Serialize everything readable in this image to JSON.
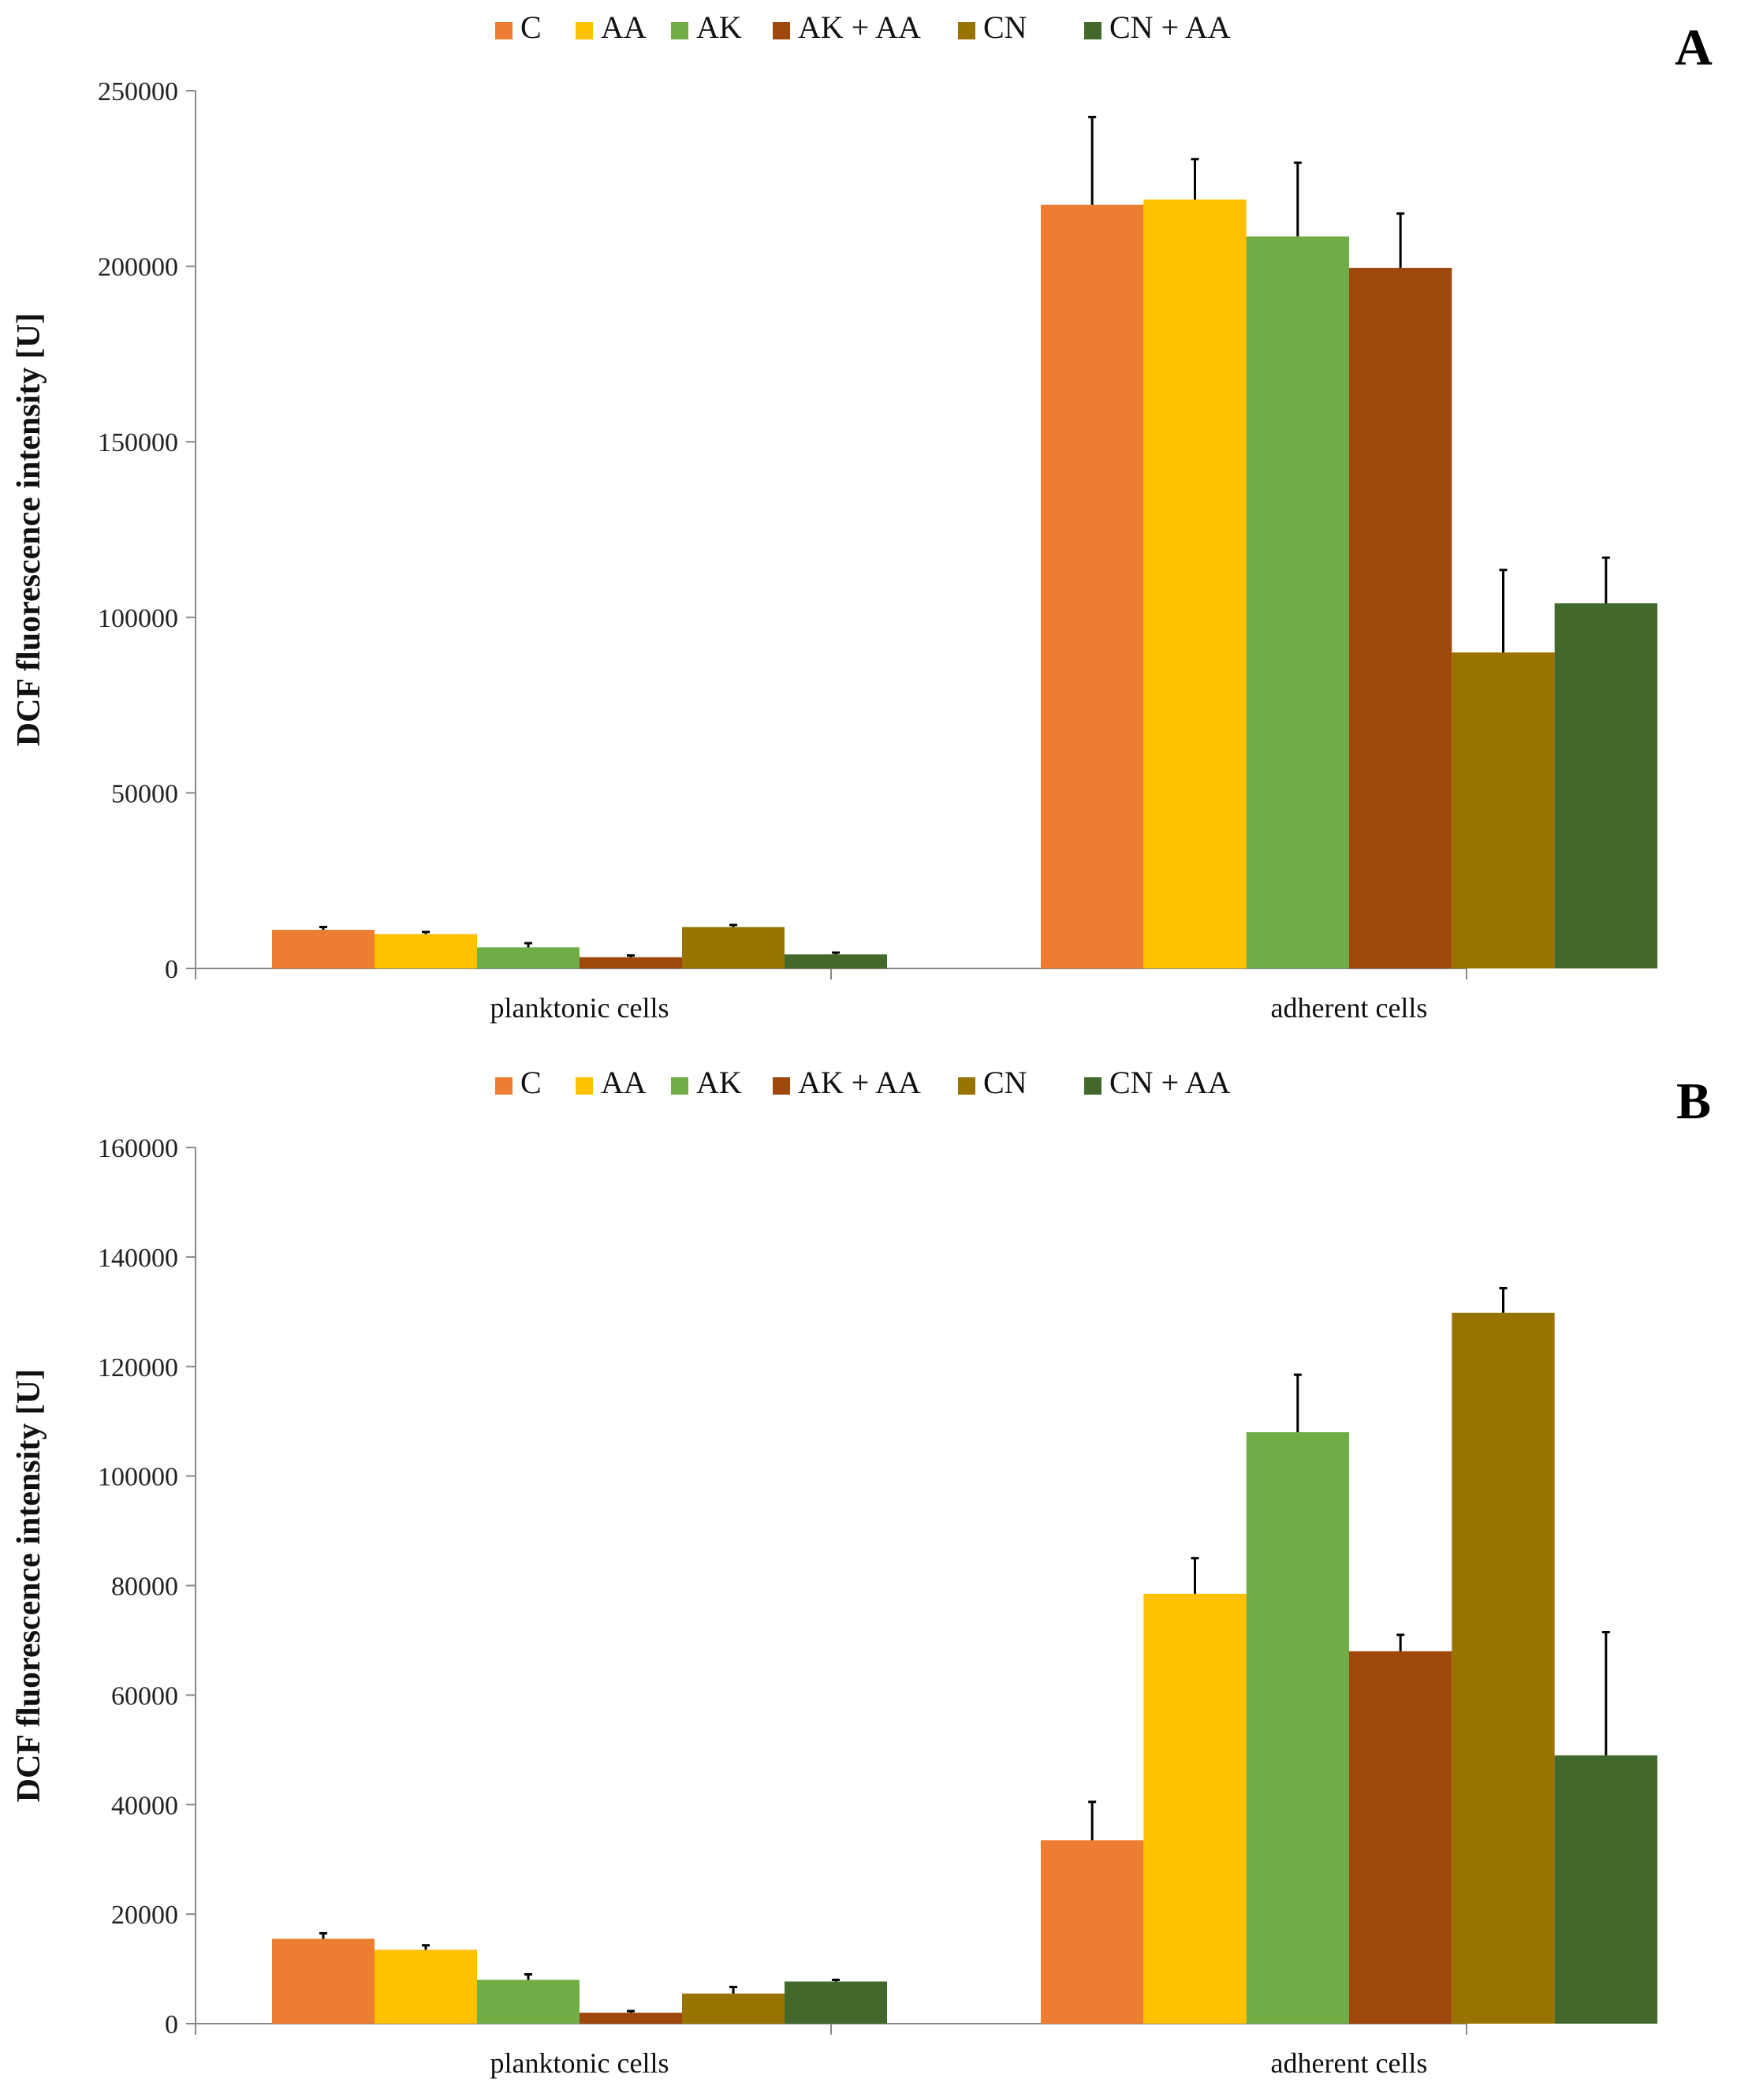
{
  "colors": {
    "C": "#ED7D31",
    "AA": "#FFC000",
    "AK": "#70AD47",
    "AK + AA": "#9E480E",
    "CN": "#997300",
    "CN + AA": "#43682B"
  },
  "chart_data": [
    {
      "type": "bar",
      "panel_label": "A",
      "ylabel": "DCF fluorescence intensity [U]",
      "xlabel": "",
      "ylim": [
        0,
        250000
      ],
      "yticks": [
        "0",
        "50000",
        "100000",
        "150000",
        "200000",
        "250000"
      ],
      "ytick_values": [
        0,
        50000,
        100000,
        150000,
        200000,
        250000
      ],
      "legend": [
        "C",
        "AA",
        "AK",
        "AK + AA",
        "CN",
        "CN + AA"
      ],
      "legend_position": "top-center",
      "categories": [
        "planktonic cells",
        "adherent cells"
      ],
      "series": [
        {
          "name": "C",
          "values": [
            11000,
            217500
          ],
          "errors": [
            800,
            25000
          ]
        },
        {
          "name": "AA",
          "values": [
            9800,
            219000
          ],
          "errors": [
            600,
            11500
          ]
        },
        {
          "name": "AK",
          "values": [
            6000,
            208500
          ],
          "errors": [
            1200,
            21000
          ]
        },
        {
          "name": "AK + AA",
          "values": [
            3200,
            199500
          ],
          "errors": [
            500,
            15500
          ]
        },
        {
          "name": "CN",
          "values": [
            11800,
            90000
          ],
          "errors": [
            600,
            23500
          ]
        },
        {
          "name": "CN + AA",
          "values": [
            4000,
            104000
          ],
          "errors": [
            500,
            13000
          ]
        }
      ]
    },
    {
      "type": "bar",
      "panel_label": "B",
      "ylabel": "DCF fluorescence intensity [U]",
      "xlabel": "",
      "ylim": [
        0,
        160000
      ],
      "yticks": [
        "0",
        "20000",
        "40000",
        "60000",
        "80000",
        "100000",
        "120000",
        "140000",
        "160000"
      ],
      "ytick_values": [
        0,
        20000,
        40000,
        60000,
        80000,
        100000,
        120000,
        140000,
        160000
      ],
      "legend": [
        "C",
        "AA",
        "AK",
        "AK + AA",
        "CN",
        "CN + AA"
      ],
      "legend_position": "top-center",
      "categories": [
        "planktonic cells",
        "adherent cells"
      ],
      "series": [
        {
          "name": "C",
          "values": [
            15500,
            33500
          ],
          "errors": [
            1000,
            7000
          ]
        },
        {
          "name": "AA",
          "values": [
            13500,
            78500
          ],
          "errors": [
            800,
            6500
          ]
        },
        {
          "name": "AK",
          "values": [
            8000,
            108000
          ],
          "errors": [
            1000,
            10500
          ]
        },
        {
          "name": "AK + AA",
          "values": [
            2000,
            68000
          ],
          "errors": [
            300,
            3000
          ]
        },
        {
          "name": "CN",
          "values": [
            5500,
            129800
          ],
          "errors": [
            1200,
            4500
          ]
        },
        {
          "name": "CN + AA",
          "values": [
            7700,
            49000
          ],
          "errors": [
            300,
            22500
          ]
        }
      ]
    }
  ]
}
